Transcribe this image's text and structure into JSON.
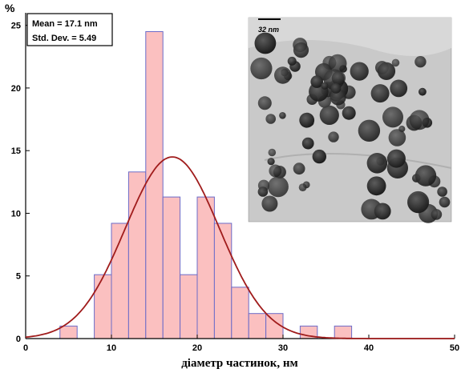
{
  "chart_data": {
    "type": "bar",
    "title": "",
    "xlabel": "діаметр частинок, нм",
    "ylabel": "%",
    "xlim": [
      0,
      50
    ],
    "ylim": [
      0,
      26
    ],
    "xticks": [
      0,
      10,
      20,
      30,
      40,
      50
    ],
    "yticks": [
      0,
      5,
      10,
      15,
      20,
      25
    ],
    "bin_width": 2,
    "bars": [
      {
        "x_start": 4,
        "value": 1.0
      },
      {
        "x_start": 8,
        "value": 5.1
      },
      {
        "x_start": 10,
        "value": 9.2
      },
      {
        "x_start": 12,
        "value": 13.3
      },
      {
        "x_start": 14,
        "value": 24.5
      },
      {
        "x_start": 16,
        "value": 11.3
      },
      {
        "x_start": 18,
        "value": 5.1
      },
      {
        "x_start": 20,
        "value": 11.3
      },
      {
        "x_start": 22,
        "value": 9.2
      },
      {
        "x_start": 24,
        "value": 4.1
      },
      {
        "x_start": 26,
        "value": 2.0
      },
      {
        "x_start": 28,
        "value": 2.0
      },
      {
        "x_start": 32,
        "value": 1.0
      },
      {
        "x_start": 36,
        "value": 1.0
      }
    ],
    "fit_curve": {
      "type": "normal",
      "mean": 17.1,
      "std": 5.49,
      "peak": 14.5
    },
    "stats": {
      "mean_label": "Mean = 17.1 nm",
      "std_label": "Std. Dev. = 5.49"
    },
    "inset": {
      "scale_bar_label": "32 nm"
    },
    "colors": {
      "bar_fill": "#fbc0c0",
      "bar_edge": "#6b6bc8",
      "curve": "#a01c1c",
      "axis": "#000000"
    }
  }
}
